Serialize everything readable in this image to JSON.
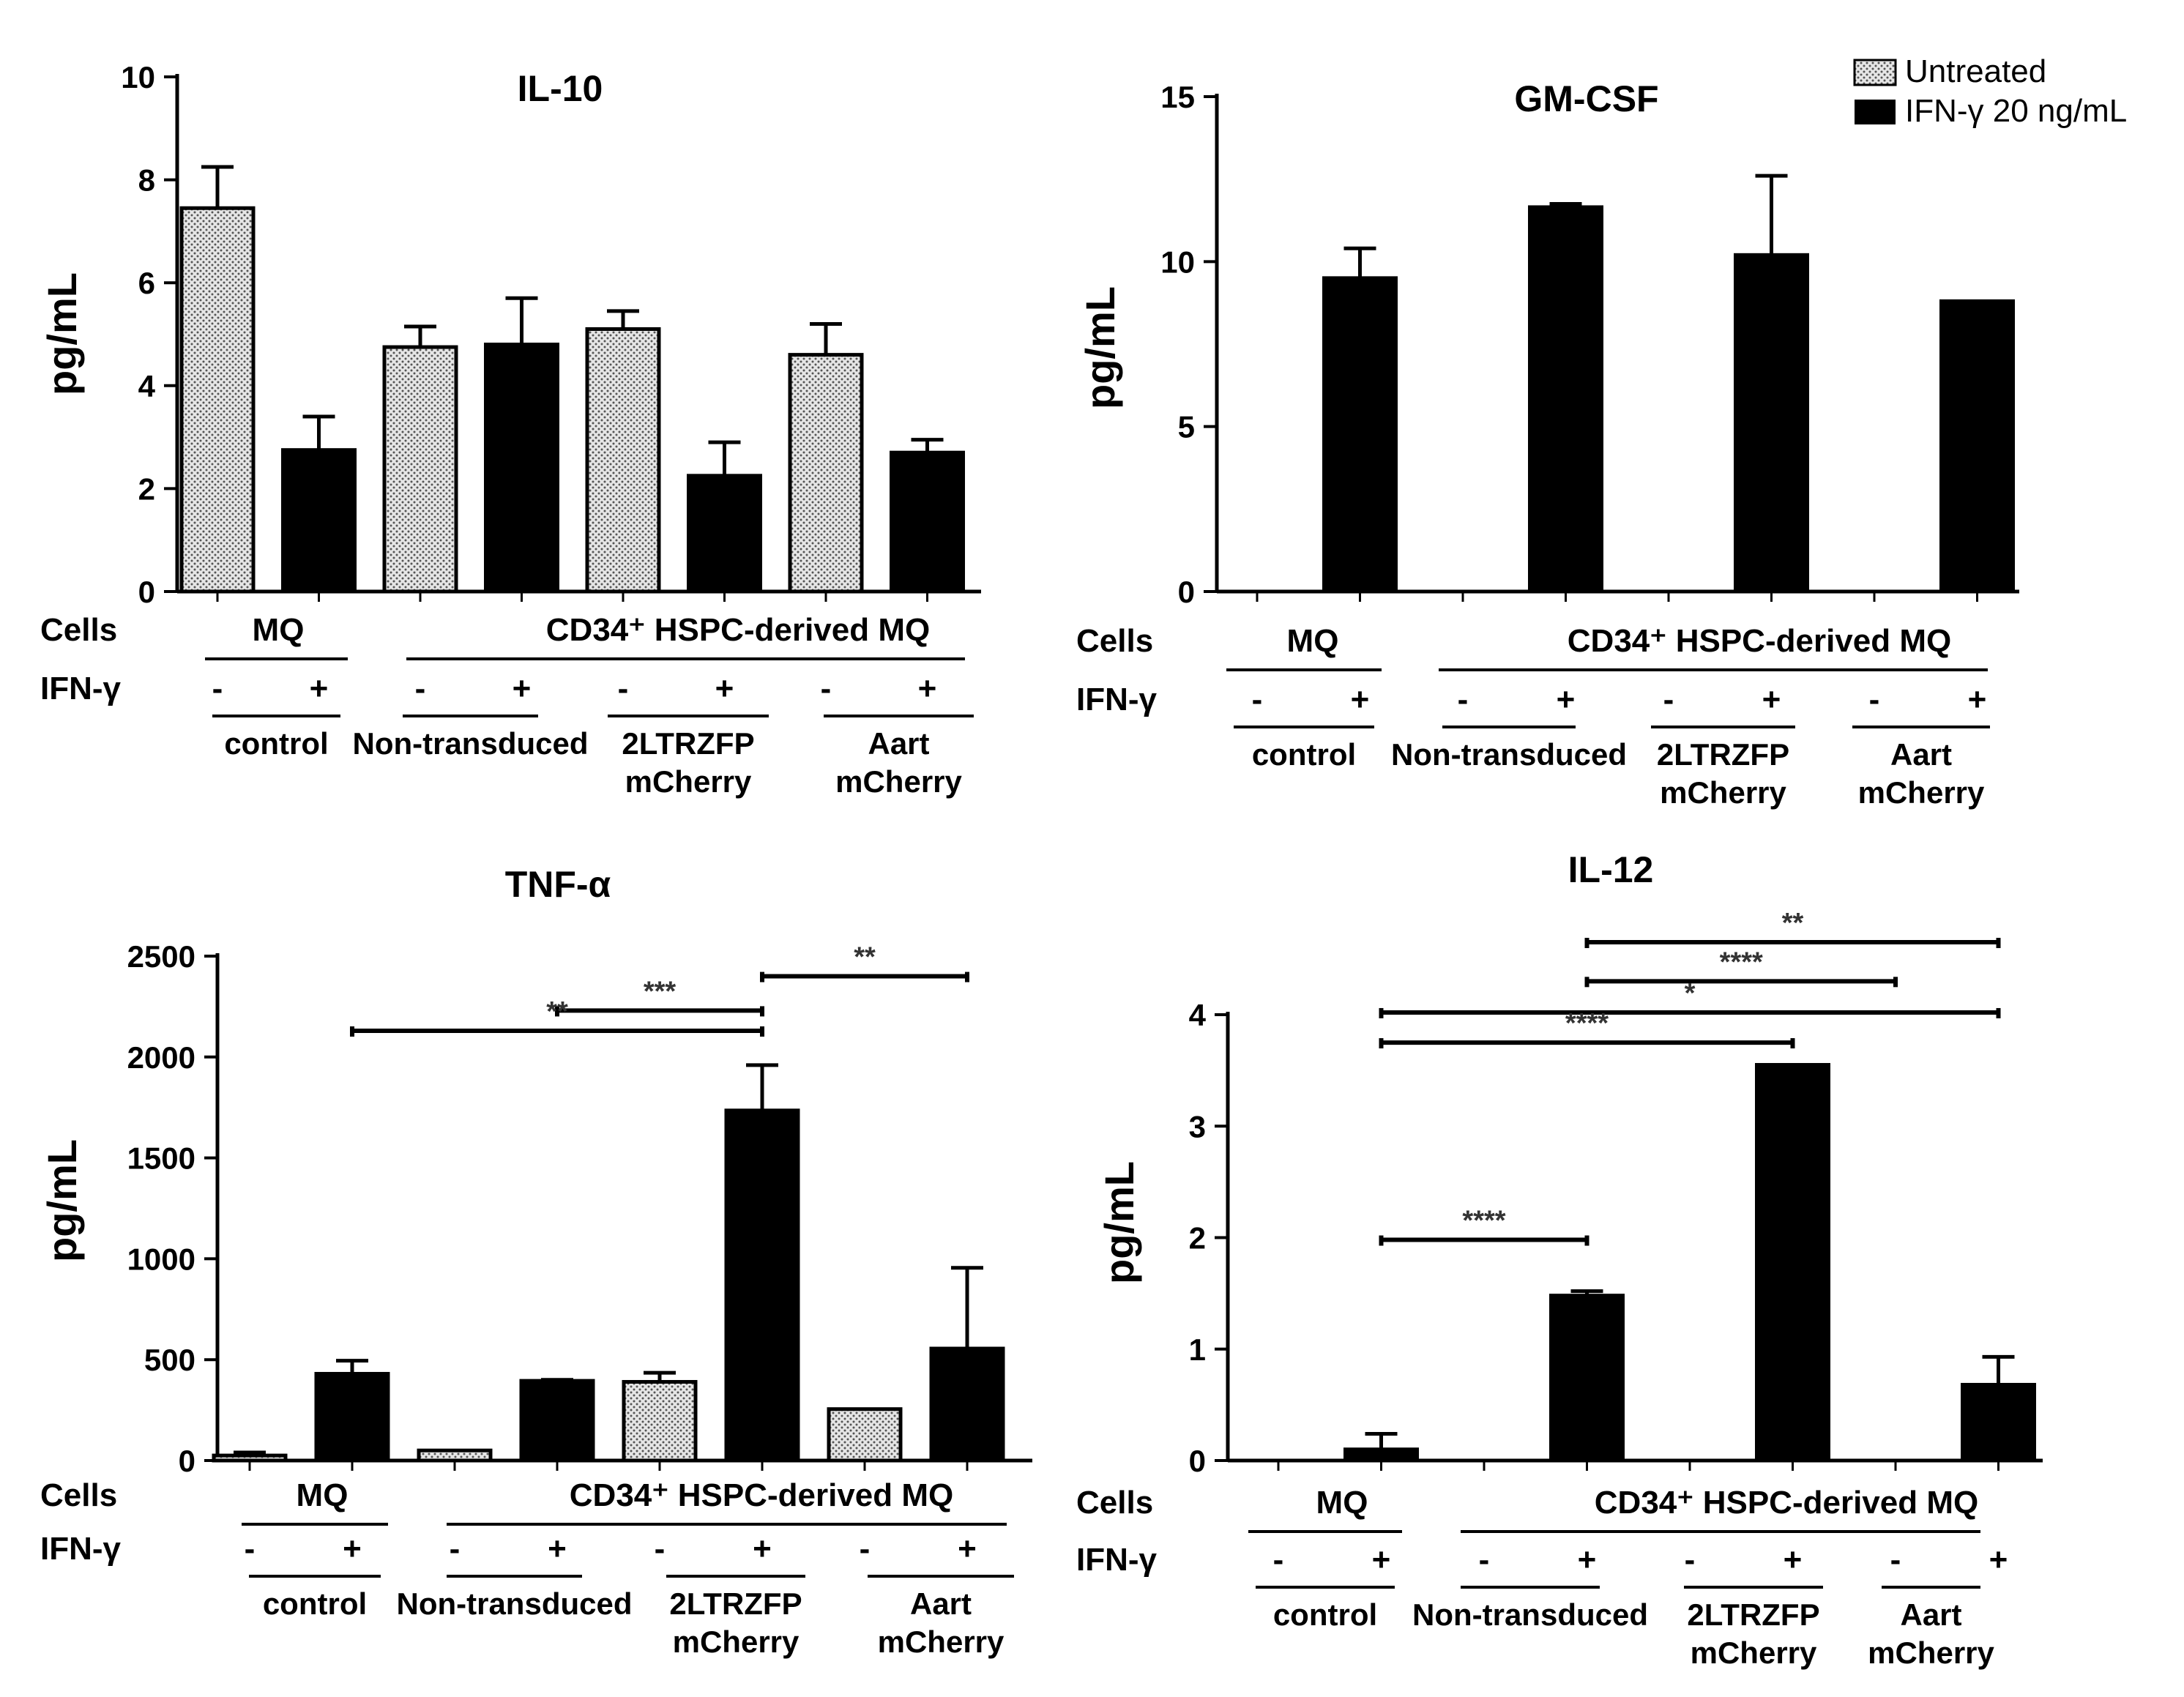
{
  "legend": {
    "placement": "top-right",
    "items": [
      {
        "label": "Untreated",
        "pattern": "dotted"
      },
      {
        "label": "IFN-γ 20 ng/mL",
        "pattern": "solid"
      }
    ]
  },
  "shared": {
    "cells_label": "Cells",
    "ifn_label": "IFN-γ",
    "mq_label": "MQ",
    "cd34_label": "CD34⁺ HSPC-derived MQ",
    "minus": "-",
    "plus": "+",
    "group_labels": [
      [
        "control"
      ],
      [
        "Non-transduced"
      ],
      [
        "2LTRZFP",
        "mCherry"
      ],
      [
        "Aart",
        "mCherry"
      ]
    ]
  },
  "colors": {
    "bar_solid": "#000000",
    "bar_dotted_bg": "#e6e6e6",
    "dot": "#555555",
    "axis": "#000000",
    "sig_text": "#333333"
  },
  "chart_data": [
    {
      "type": "bar",
      "title": "IL-10",
      "ylabel": "pg/mL",
      "ylim": [
        0,
        10
      ],
      "yticks": [
        0,
        2,
        4,
        6,
        8,
        10
      ],
      "categories": [
        "control -",
        "control +",
        "Non-transduced -",
        "Non-transduced +",
        "2LTRZFP mCherry -",
        "2LTRZFP mCherry +",
        "Aart mCherry -",
        "Aart mCherry +"
      ],
      "values": [
        7.45,
        2.75,
        4.75,
        4.8,
        5.1,
        2.25,
        4.6,
        2.7
      ],
      "errors": [
        0.8,
        0.65,
        0.4,
        0.9,
        0.35,
        0.65,
        0.6,
        0.25
      ],
      "patterns": [
        "dotted",
        "solid",
        "dotted",
        "solid",
        "dotted",
        "solid",
        "dotted",
        "solid"
      ],
      "significance": []
    },
    {
      "type": "bar",
      "title": "GM-CSF",
      "ylabel": "pg/mL",
      "ylim": [
        0,
        15
      ],
      "yticks": [
        0,
        5,
        10,
        15
      ],
      "categories": [
        "control -",
        "control +",
        "Non-transduced -",
        "Non-transduced +",
        "2LTRZFP mCherry -",
        "2LTRZFP mCherry +",
        "Aart mCherry -",
        "Aart mCherry +"
      ],
      "values": [
        0,
        9.5,
        0,
        11.65,
        0,
        10.2,
        0,
        8.8
      ],
      "errors": [
        0,
        0.9,
        0,
        0.1,
        0,
        2.4,
        0,
        0
      ],
      "patterns": [
        "dotted",
        "solid",
        "dotted",
        "solid",
        "dotted",
        "solid",
        "dotted",
        "solid"
      ],
      "significance": []
    },
    {
      "type": "bar",
      "title": "TNF-α",
      "ylabel": "pg/mL",
      "ylim": [
        0,
        2500
      ],
      "yticks": [
        0,
        500,
        1000,
        1500,
        2000,
        2500
      ],
      "categories": [
        "control -",
        "control +",
        "Non-transduced -",
        "Non-transduced +",
        "2LTRZFP mCherry -",
        "2LTRZFP mCherry +",
        "Aart mCherry -",
        "Aart mCherry +"
      ],
      "values": [
        25,
        430,
        50,
        395,
        390,
        1735,
        255,
        555
      ],
      "errors": [
        15,
        65,
        0,
        5,
        45,
        225,
        0,
        400
      ],
      "patterns": [
        "dotted",
        "solid",
        "dotted",
        "solid",
        "dotted",
        "solid",
        "dotted",
        "solid"
      ],
      "significance": [
        {
          "from": 5,
          "to": 7,
          "y": 2400,
          "label": "**"
        },
        {
          "from": 3,
          "to": 5,
          "y": 2230,
          "label": "***"
        },
        {
          "from": 1,
          "to": 5,
          "y": 2130,
          "label": "**"
        }
      ]
    },
    {
      "type": "bar",
      "title": "IL-12",
      "ylabel": "pg/mL",
      "ylim": [
        0,
        4
      ],
      "yticks": [
        0,
        1,
        2,
        3,
        4
      ],
      "categories": [
        "control -",
        "control +",
        "Non-transduced -",
        "Non-transduced +",
        "2LTRZFP mCherry -",
        "2LTRZFP mCherry +",
        "Aart mCherry -",
        "Aart mCherry +"
      ],
      "values": [
        0,
        0.1,
        0,
        1.48,
        0,
        3.55,
        0,
        0.68
      ],
      "errors": [
        0,
        0.14,
        0,
        0.04,
        0,
        0,
        0,
        0.25
      ],
      "patterns": [
        "dotted",
        "solid",
        "dotted",
        "solid",
        "dotted",
        "solid",
        "dotted",
        "solid"
      ],
      "significance": [
        {
          "from": 3,
          "to": 7,
          "y": 4.65,
          "label": "**"
        },
        {
          "from": 3,
          "to": 6,
          "y": 4.3,
          "label": "****"
        },
        {
          "from": 1,
          "to": 7,
          "y": 4.02,
          "label": "*"
        },
        {
          "from": 1,
          "to": 5,
          "y": 3.75,
          "label": "****"
        },
        {
          "from": 1,
          "to": 3,
          "y": 1.98,
          "label": "****"
        }
      ]
    }
  ]
}
